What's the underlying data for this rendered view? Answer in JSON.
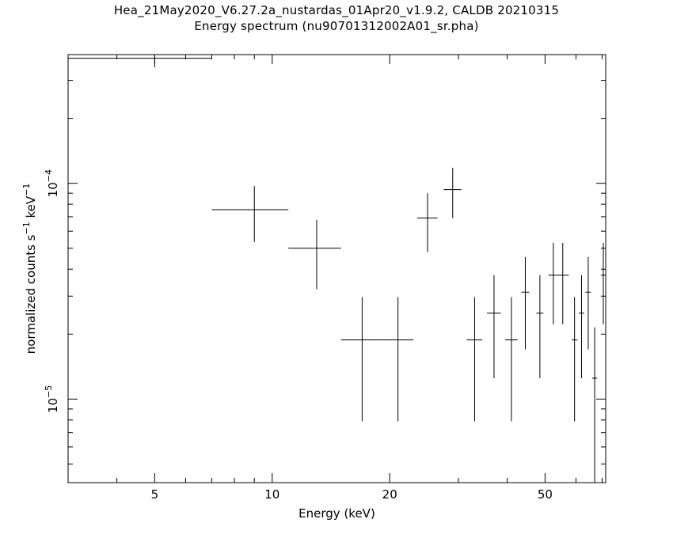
{
  "header": {
    "title": "Hea_21May2020_V6.27.2a_nustardas_01Apr20_v1.9.2, CALDB 20210315",
    "subtitle": "Energy spectrum (nu90701312002A01_sr.pha)"
  },
  "chart_data": {
    "type": "scatter",
    "title": "Hea_21May2020_V6.27.2a_nustardas_01Apr20_v1.9.2, CALDB 20210315",
    "subtitle": "Energy spectrum (nu90701312002A01_sr.pha)",
    "xlabel": "Energy (keV)",
    "ylabel_parts": [
      "normalized counts s",
      "−1",
      " keV",
      "−1"
    ],
    "x_scale": "log",
    "y_scale": "log",
    "xlim": [
      3.0,
      71.5
    ],
    "ylim": [
      4.1e-06,
      0.000395
    ],
    "grid": false,
    "x_tick_labels": [
      {
        "value": 5,
        "label": "5"
      },
      {
        "value": 10,
        "label": "10"
      },
      {
        "value": 20,
        "label": "20"
      },
      {
        "value": 50,
        "label": "50"
      }
    ],
    "y_tick_labels": [
      {
        "value": 0.0001,
        "base": "10",
        "exp": "−4"
      },
      {
        "value": 1e-05,
        "base": "10",
        "exp": "−5"
      }
    ],
    "series": [
      {
        "color": "#000000",
        "points": [
          {
            "x": 5.0,
            "xlo": 3.0,
            "xhi": 7.0,
            "y": 0.00038,
            "ylo": 0.000345,
            "yhi": 0.000415
          },
          {
            "x": 9.0,
            "xlo": 7.0,
            "xhi": 11.0,
            "y": 7.55e-05,
            "ylo": 5.35e-05,
            "yhi": 9.7e-05
          },
          {
            "x": 13.0,
            "xlo": 11.0,
            "xhi": 15.0,
            "y": 5e-05,
            "ylo": 3.23e-05,
            "yhi": 6.77e-05
          },
          {
            "x": 17.0,
            "xlo": 15.0,
            "xhi": 19.0,
            "y": 1.88e-05,
            "ylo": 7.9e-06,
            "yhi": 2.97e-05
          },
          {
            "x": 21.0,
            "xlo": 19.0,
            "xhi": 23.0,
            "y": 1.88e-05,
            "ylo": 7.9e-06,
            "yhi": 2.97e-05
          },
          {
            "x": 25.0,
            "xlo": 23.5,
            "xhi": 26.5,
            "y": 6.9e-05,
            "ylo": 4.8e-05,
            "yhi": 9e-05
          },
          {
            "x": 29.0,
            "xlo": 27.5,
            "xhi": 30.5,
            "y": 9.35e-05,
            "ylo": 6.9e-05,
            "yhi": 0.000118
          },
          {
            "x": 33.0,
            "xlo": 31.5,
            "xhi": 34.5,
            "y": 1.88e-05,
            "ylo": 7.9e-06,
            "yhi": 2.97e-05
          },
          {
            "x": 37.0,
            "xlo": 35.5,
            "xhi": 38.5,
            "y": 2.5e-05,
            "ylo": 1.25e-05,
            "yhi": 3.75e-05
          },
          {
            "x": 41.0,
            "xlo": 39.5,
            "xhi": 42.5,
            "y": 1.88e-05,
            "ylo": 7.9e-06,
            "yhi": 2.97e-05
          },
          {
            "x": 44.5,
            "xlo": 43.5,
            "xhi": 45.5,
            "y": 3.13e-05,
            "ylo": 1.7e-05,
            "yhi": 4.55e-05
          },
          {
            "x": 48.5,
            "xlo": 47.5,
            "xhi": 49.5,
            "y": 2.5e-05,
            "ylo": 1.25e-05,
            "yhi": 3.75e-05
          },
          {
            "x": 52.5,
            "xlo": 51.0,
            "xhi": 54.0,
            "y": 3.75e-05,
            "ylo": 2.22e-05,
            "yhi": 5.3e-05
          },
          {
            "x": 55.5,
            "xlo": 54.0,
            "xhi": 57.5,
            "y": 3.75e-05,
            "ylo": 2.22e-05,
            "yhi": 5.3e-05
          },
          {
            "x": 59.5,
            "xlo": 58.5,
            "xhi": 60.5,
            "y": 1.88e-05,
            "ylo": 7.9e-06,
            "yhi": 2.97e-05
          },
          {
            "x": 62.0,
            "xlo": 61.0,
            "xhi": 63.0,
            "y": 2.5e-05,
            "ylo": 1.25e-05,
            "yhi": 3.75e-05
          },
          {
            "x": 64.5,
            "xlo": 63.5,
            "xhi": 65.5,
            "y": 3.13e-05,
            "ylo": 1.7e-05,
            "yhi": 4.55e-05
          },
          {
            "x": 67.0,
            "xlo": 66.0,
            "xhi": 68.0,
            "y": 1.25e-05,
            "ylo": 4.1e-06,
            "yhi": 2.15e-05
          },
          {
            "x": 70.5,
            "xlo": 69.5,
            "xhi": 71.5,
            "y": 3.75e-05,
            "ylo": 2.22e-05,
            "yhi": 5.3e-05
          }
        ]
      }
    ]
  }
}
